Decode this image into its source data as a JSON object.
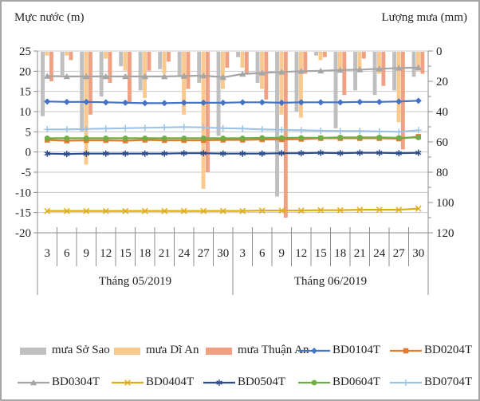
{
  "chart_data": {
    "type": "combo",
    "description": "Rainfall bars (right axis, inverted, mm) combined with station water-level lines (left axis, m) for May-June 2019",
    "categories": [
      "3/5",
      "6/5",
      "9/5",
      "12/5",
      "15/5",
      "18/5",
      "21/5",
      "24/5",
      "27/5",
      "30/5",
      "3/6",
      "6/6",
      "9/6",
      "12/6",
      "15/6",
      "18/6",
      "21/6",
      "24/6",
      "27/6",
      "30/6"
    ],
    "months": [
      {
        "label": "Tháng 05/2019",
        "days": [
          "3",
          "6",
          "9",
          "12",
          "15",
          "18",
          "21",
          "24",
          "27",
          "30"
        ]
      },
      {
        "label": "Tháng 06/2019",
        "days": [
          "3",
          "6",
          "9",
          "12",
          "15",
          "18",
          "21",
          "24",
          "27",
          "30"
        ]
      }
    ],
    "left_axis": {
      "title": "Mực nước (m)",
      "min": -20,
      "max": 25,
      "tick_step": 5,
      "ticks": [
        25,
        20,
        15,
        10,
        5,
        0,
        -5,
        -10,
        -15,
        -20
      ]
    },
    "right_axis": {
      "title": "Lượng mưa (mm)",
      "min": 0,
      "max": 120,
      "tick_step": 20,
      "inverted": true,
      "ticks": [
        0,
        20,
        40,
        60,
        80,
        100,
        120
      ]
    },
    "grid": true,
    "legend_position": "bottom",
    "bar_series": [
      {
        "name": "mưa Sở Sao",
        "color": "#bfbfbf",
        "unit": "mm",
        "values": [
          43,
          16,
          53,
          30,
          10,
          26,
          12,
          17,
          21,
          56,
          4,
          21,
          96,
          40,
          3,
          51,
          26,
          29,
          26,
          17
        ]
      },
      {
        "name": "mưa Dĩ An",
        "color": "#fac98e",
        "unit": "mm",
        "values": [
          3,
          3,
          75,
          5,
          13,
          31,
          15,
          42,
          91,
          25,
          11,
          25,
          42,
          44,
          6,
          12,
          14,
          15,
          47,
          13
        ]
      },
      {
        "name": "mưa Thuận An",
        "color": "#f0a183",
        "unit": "mm",
        "values": [
          20,
          6,
          42,
          21,
          34,
          13,
          7,
          25,
          80,
          11,
          15,
          32,
          110,
          15,
          4,
          29,
          5,
          23,
          65,
          15
        ]
      }
    ],
    "line_series": [
      {
        "name": "BD0104T",
        "color": "#4472c4",
        "marker": "diamond",
        "unit": "m",
        "values": [
          12.5,
          12.4,
          12.4,
          12.3,
          12.2,
          12.1,
          12.1,
          12.2,
          12.2,
          12.2,
          12.3,
          12.3,
          12.2,
          12.3,
          12.3,
          12.3,
          12.4,
          12.4,
          12.5,
          12.7
        ]
      },
      {
        "name": "BD0204T",
        "color": "#e07b2f",
        "marker": "square",
        "unit": "m",
        "values": [
          3.0,
          2.8,
          2.9,
          2.9,
          2.8,
          3.0,
          2.9,
          2.9,
          2.9,
          3.0,
          3.0,
          3.1,
          3.1,
          3.2,
          3.4,
          3.4,
          3.4,
          3.4,
          3.3,
          3.8
        ]
      },
      {
        "name": "BD0304T",
        "color": "#a6a6a6",
        "marker": "triangle",
        "unit": "m",
        "values": [
          18.8,
          18.7,
          18.7,
          18.7,
          18.7,
          18.7,
          18.7,
          18.8,
          18.9,
          18.5,
          19.3,
          19.6,
          19.8,
          20.0,
          20.1,
          20.3,
          20.4,
          20.6,
          20.8,
          20.9
        ]
      },
      {
        "name": "BD0404T",
        "color": "#dfae18",
        "marker": "x",
        "unit": "m",
        "values": [
          -14.6,
          -14.6,
          -14.6,
          -14.6,
          -14.6,
          -14.6,
          -14.6,
          -14.6,
          -14.6,
          -14.6,
          -14.6,
          -14.5,
          -14.5,
          -14.5,
          -14.4,
          -14.4,
          -14.3,
          -14.3,
          -14.3,
          -14.0
        ]
      },
      {
        "name": "BD0504T",
        "color": "#2e4d8c",
        "marker": "asterisk",
        "unit": "m",
        "values": [
          -0.4,
          -0.5,
          -0.4,
          -0.4,
          -0.4,
          -0.4,
          -0.4,
          -0.3,
          -0.3,
          -0.4,
          -0.4,
          -0.4,
          -0.3,
          -0.3,
          -0.2,
          -0.3,
          -0.2,
          -0.2,
          -0.3,
          -0.2
        ]
      },
      {
        "name": "BD0604T",
        "color": "#70ad47",
        "marker": "circle",
        "unit": "m",
        "values": [
          3.4,
          3.4,
          3.4,
          3.4,
          3.4,
          3.4,
          3.4,
          3.4,
          3.4,
          3.4,
          3.4,
          3.5,
          3.5,
          3.5,
          3.5,
          3.6,
          3.6,
          3.6,
          3.5,
          3.6
        ]
      },
      {
        "name": "BD0704T",
        "color": "#9dc3e6",
        "marker": "plus",
        "unit": "m",
        "values": [
          5.6,
          5.6,
          5.7,
          5.8,
          5.9,
          6.0,
          6.1,
          6.2,
          6.1,
          5.9,
          5.8,
          5.6,
          5.5,
          5.4,
          5.3,
          5.2,
          5.2,
          5.1,
          5.0,
          5.4
        ]
      }
    ],
    "legend_rows": [
      [
        "mưa Sở Sao",
        "mưa Dĩ An",
        "mưa Thuận An",
        "BD0104T",
        "BD0204T"
      ],
      [
        "BD0304T",
        "BD0404T",
        "BD0504T",
        "BD0604T",
        "BD0704T"
      ]
    ]
  },
  "style_colors": {
    "grid": "#c9c9c9",
    "axis": "#8c8c8c",
    "text": "#1f1f1f",
    "frame": "#a6a6a6"
  }
}
